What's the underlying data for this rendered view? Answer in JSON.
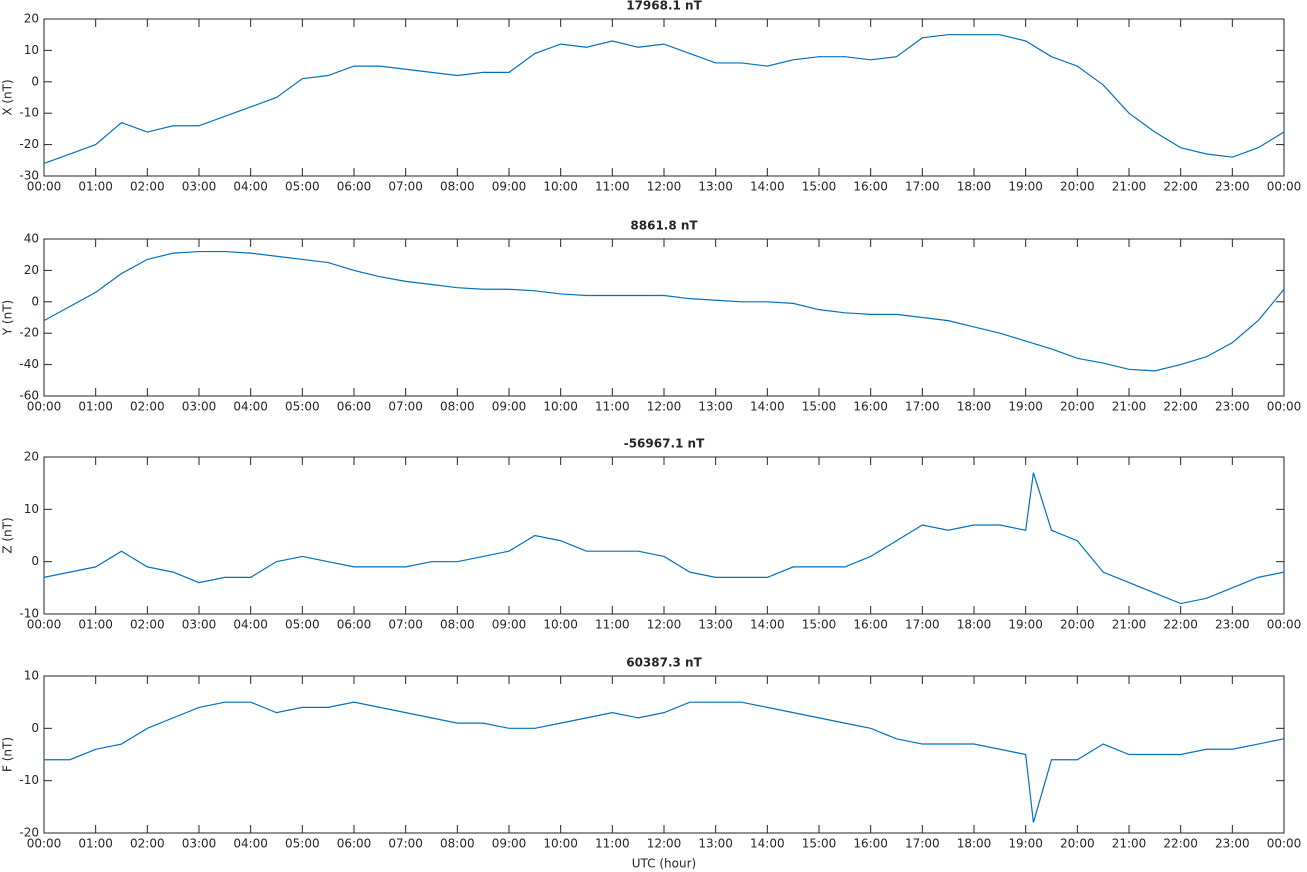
{
  "chart_data": [
    {
      "type": "line",
      "title": "17968.1 nT",
      "ylabel": "X (nT)",
      "color": "#0072bd",
      "x": [
        0,
        0.5,
        1,
        1.5,
        2,
        2.5,
        3,
        3.5,
        4,
        4.5,
        5,
        5.5,
        6,
        6.5,
        7,
        7.5,
        8,
        8.5,
        9,
        9.5,
        10,
        10.5,
        11,
        11.5,
        12,
        12.5,
        13,
        13.5,
        14,
        14.5,
        15,
        15.5,
        16,
        16.5,
        17,
        17.5,
        18,
        18.5,
        19,
        19.5,
        20,
        20.5,
        21,
        21.5,
        22,
        22.5,
        23,
        23.5,
        24
      ],
      "values": [
        -26,
        -23,
        -20,
        -13,
        -16,
        -14,
        -14,
        -11,
        -8,
        -5,
        1,
        2,
        5,
        5,
        4,
        3,
        2,
        3,
        3,
        9,
        12,
        11,
        13,
        11,
        12,
        9,
        6,
        6,
        5,
        7,
        8,
        8,
        7,
        8,
        14,
        15,
        15,
        15,
        13,
        8,
        5,
        -1,
        -10,
        -16,
        -21,
        -23,
        -24,
        -21,
        -16
      ],
      "xlim": [
        0,
        24
      ],
      "ylim": [
        -30,
        20
      ],
      "yticks": [
        -30,
        -20,
        -10,
        0,
        10,
        20
      ],
      "xticks": [
        {
          "value": 0,
          "label": "00:00"
        },
        {
          "value": 1,
          "label": "01:00"
        },
        {
          "value": 2,
          "label": "02:00"
        },
        {
          "value": 3,
          "label": "03:00"
        },
        {
          "value": 4,
          "label": "04:00"
        },
        {
          "value": 5,
          "label": "05:00"
        },
        {
          "value": 6,
          "label": "06:00"
        },
        {
          "value": 7,
          "label": "07:00"
        },
        {
          "value": 8,
          "label": "08:00"
        },
        {
          "value": 9,
          "label": "09:00"
        },
        {
          "value": 10,
          "label": "10:00"
        },
        {
          "value": 11,
          "label": "11:00"
        },
        {
          "value": 12,
          "label": "12:00"
        },
        {
          "value": 13,
          "label": "13:00"
        },
        {
          "value": 14,
          "label": "14:00"
        },
        {
          "value": 15,
          "label": "15:00"
        },
        {
          "value": 16,
          "label": "16:00"
        },
        {
          "value": 17,
          "label": "17:00"
        },
        {
          "value": 18,
          "label": "18:00"
        },
        {
          "value": 19,
          "label": "19:00"
        },
        {
          "value": 20,
          "label": "20:00"
        },
        {
          "value": 21,
          "label": "21:00"
        },
        {
          "value": 22,
          "label": "22:00"
        },
        {
          "value": 23,
          "label": "23:00"
        },
        {
          "value": 24,
          "label": "00:00"
        }
      ]
    },
    {
      "type": "line",
      "title": "8861.8 nT",
      "ylabel": "Y (nT)",
      "color": "#0072bd",
      "x": [
        0,
        0.5,
        1,
        1.5,
        2,
        2.5,
        3,
        3.5,
        4,
        4.5,
        5,
        5.5,
        6,
        6.5,
        7,
        7.5,
        8,
        8.5,
        9,
        9.5,
        10,
        10.5,
        11,
        11.5,
        12,
        12.5,
        13,
        13.5,
        14,
        14.5,
        15,
        15.5,
        16,
        16.5,
        17,
        17.5,
        18,
        18.5,
        19,
        19.5,
        20,
        20.5,
        21,
        21.5,
        22,
        22.5,
        23,
        23.5,
        24
      ],
      "values": [
        -12,
        -3,
        6,
        18,
        27,
        31,
        32,
        32,
        31,
        29,
        27,
        25,
        20,
        16,
        13,
        11,
        9,
        8,
        8,
        7,
        5,
        4,
        4,
        4,
        4,
        2,
        1,
        0,
        0,
        -1,
        -5,
        -7,
        -8,
        -8,
        -10,
        -12,
        -16,
        -20,
        -25,
        -30,
        -36,
        -39,
        -43,
        -44,
        -40,
        -35,
        -26,
        -12,
        8
      ],
      "xlim": [
        0,
        24
      ],
      "ylim": [
        -60,
        40
      ],
      "yticks": [
        -60,
        -40,
        -20,
        0,
        20,
        40
      ],
      "xticks": [
        {
          "value": 0,
          "label": "00:00"
        },
        {
          "value": 1,
          "label": "01:00"
        },
        {
          "value": 2,
          "label": "02:00"
        },
        {
          "value": 3,
          "label": "03:00"
        },
        {
          "value": 4,
          "label": "04:00"
        },
        {
          "value": 5,
          "label": "05:00"
        },
        {
          "value": 6,
          "label": "06:00"
        },
        {
          "value": 7,
          "label": "07:00"
        },
        {
          "value": 8,
          "label": "08:00"
        },
        {
          "value": 9,
          "label": "09:00"
        },
        {
          "value": 10,
          "label": "10:00"
        },
        {
          "value": 11,
          "label": "11:00"
        },
        {
          "value": 12,
          "label": "12:00"
        },
        {
          "value": 13,
          "label": "13:00"
        },
        {
          "value": 14,
          "label": "14:00"
        },
        {
          "value": 15,
          "label": "15:00"
        },
        {
          "value": 16,
          "label": "16:00"
        },
        {
          "value": 17,
          "label": "17:00"
        },
        {
          "value": 18,
          "label": "18:00"
        },
        {
          "value": 19,
          "label": "19:00"
        },
        {
          "value": 20,
          "label": "20:00"
        },
        {
          "value": 21,
          "label": "21:00"
        },
        {
          "value": 22,
          "label": "22:00"
        },
        {
          "value": 23,
          "label": "23:00"
        },
        {
          "value": 24,
          "label": "00:00"
        }
      ]
    },
    {
      "type": "line",
      "title": "-56967.1 nT",
      "ylabel": "Z (nT)",
      "color": "#0072bd",
      "x": [
        0,
        0.5,
        1,
        1.5,
        2,
        2.5,
        3,
        3.5,
        4,
        4.5,
        5,
        5.5,
        6,
        6.5,
        7,
        7.5,
        8,
        8.5,
        9,
        9.5,
        10,
        10.5,
        11,
        11.5,
        12,
        12.5,
        13,
        13.5,
        14,
        14.5,
        15,
        15.5,
        16,
        16.5,
        17,
        17.5,
        18,
        18.5,
        19,
        19.15,
        19.5,
        20,
        20.5,
        21,
        21.5,
        22,
        22.5,
        23,
        23.5,
        24
      ],
      "values": [
        -3,
        -2,
        -1,
        2,
        -1,
        -2,
        -4,
        -3,
        -3,
        0,
        1,
        0,
        -1,
        -1,
        -1,
        0,
        0,
        1,
        2,
        5,
        4,
        2,
        2,
        2,
        1,
        -2,
        -3,
        -3,
        -3,
        -1,
        -1,
        -1,
        1,
        4,
        7,
        6,
        7,
        7,
        6,
        17,
        6,
        4,
        -2,
        -4,
        -6,
        -8,
        -7,
        -5,
        -3,
        -2
      ],
      "xlim": [
        0,
        24
      ],
      "ylim": [
        -10,
        20
      ],
      "yticks": [
        -10,
        0,
        10,
        20
      ],
      "xticks": [
        {
          "value": 0,
          "label": "00:00"
        },
        {
          "value": 1,
          "label": "01:00"
        },
        {
          "value": 2,
          "label": "02:00"
        },
        {
          "value": 3,
          "label": "03:00"
        },
        {
          "value": 4,
          "label": "04:00"
        },
        {
          "value": 5,
          "label": "05:00"
        },
        {
          "value": 6,
          "label": "06:00"
        },
        {
          "value": 7,
          "label": "07:00"
        },
        {
          "value": 8,
          "label": "08:00"
        },
        {
          "value": 9,
          "label": "09:00"
        },
        {
          "value": 10,
          "label": "10:00"
        },
        {
          "value": 11,
          "label": "11:00"
        },
        {
          "value": 12,
          "label": "12:00"
        },
        {
          "value": 13,
          "label": "13:00"
        },
        {
          "value": 14,
          "label": "14:00"
        },
        {
          "value": 15,
          "label": "15:00"
        },
        {
          "value": 16,
          "label": "16:00"
        },
        {
          "value": 17,
          "label": "17:00"
        },
        {
          "value": 18,
          "label": "18:00"
        },
        {
          "value": 19,
          "label": "19:00"
        },
        {
          "value": 20,
          "label": "20:00"
        },
        {
          "value": 21,
          "label": "21:00"
        },
        {
          "value": 22,
          "label": "22:00"
        },
        {
          "value": 23,
          "label": "23:00"
        },
        {
          "value": 24,
          "label": "00:00"
        }
      ]
    },
    {
      "type": "line",
      "title": "60387.3 nT",
      "ylabel": "F (nT)",
      "xlabel": "UTC (hour)",
      "color": "#0072bd",
      "x": [
        0,
        0.5,
        1,
        1.5,
        2,
        2.5,
        3,
        3.5,
        4,
        4.5,
        5,
        5.5,
        6,
        6.5,
        7,
        7.5,
        8,
        8.5,
        9,
        9.5,
        10,
        10.5,
        11,
        11.5,
        12,
        12.5,
        13,
        13.5,
        14,
        14.5,
        15,
        15.5,
        16,
        16.5,
        17,
        17.5,
        18,
        18.5,
        19,
        19.15,
        19.5,
        20,
        20.5,
        21,
        21.5,
        22,
        22.5,
        23,
        23.5,
        24
      ],
      "values": [
        -6,
        -6,
        -4,
        -3,
        0,
        2,
        4,
        5,
        5,
        3,
        4,
        4,
        5,
        4,
        3,
        2,
        1,
        1,
        0,
        0,
        1,
        2,
        3,
        2,
        3,
        5,
        5,
        5,
        4,
        3,
        2,
        1,
        0,
        -2,
        -3,
        -3,
        -3,
        -4,
        -5,
        -18,
        -6,
        -6,
        -3,
        -5,
        -5,
        -5,
        -4,
        -4,
        -3,
        -2
      ],
      "xlim": [
        0,
        24
      ],
      "ylim": [
        -20,
        10
      ],
      "yticks": [
        -20,
        -10,
        0,
        10
      ],
      "xticks": [
        {
          "value": 0,
          "label": "00:00"
        },
        {
          "value": 1,
          "label": "01:00"
        },
        {
          "value": 2,
          "label": "02:00"
        },
        {
          "value": 3,
          "label": "03:00"
        },
        {
          "value": 4,
          "label": "04:00"
        },
        {
          "value": 5,
          "label": "05:00"
        },
        {
          "value": 6,
          "label": "06:00"
        },
        {
          "value": 7,
          "label": "07:00"
        },
        {
          "value": 8,
          "label": "08:00"
        },
        {
          "value": 9,
          "label": "09:00"
        },
        {
          "value": 10,
          "label": "10:00"
        },
        {
          "value": 11,
          "label": "11:00"
        },
        {
          "value": 12,
          "label": "12:00"
        },
        {
          "value": 13,
          "label": "13:00"
        },
        {
          "value": 14,
          "label": "14:00"
        },
        {
          "value": 15,
          "label": "15:00"
        },
        {
          "value": 16,
          "label": "16:00"
        },
        {
          "value": 17,
          "label": "17:00"
        },
        {
          "value": 18,
          "label": "18:00"
        },
        {
          "value": 19,
          "label": "19:00"
        },
        {
          "value": 20,
          "label": "20:00"
        },
        {
          "value": 21,
          "label": "21:00"
        },
        {
          "value": 22,
          "label": "22:00"
        },
        {
          "value": 23,
          "label": "23:00"
        },
        {
          "value": 24,
          "label": "00:00"
        }
      ]
    }
  ]
}
